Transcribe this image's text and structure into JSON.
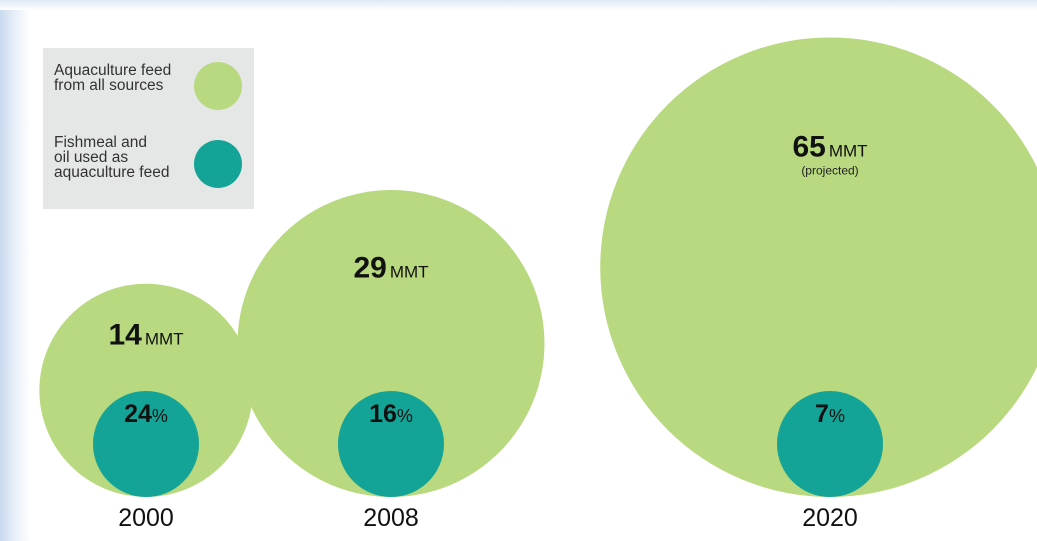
{
  "legend": {
    "items": [
      {
        "label": "Aquaculture feed\nfrom all sources",
        "color": "#b8d97f"
      },
      {
        "label": "Fishmeal and\noil used as\naquaculture feed",
        "color": "#14a497"
      }
    ]
  },
  "chart_data": {
    "type": "nested-bubble",
    "value_unit": "MMT",
    "share_unit": "%",
    "categories": [
      "2000",
      "2008",
      "2020"
    ],
    "series": [
      {
        "name": "Aquaculture feed from all sources",
        "values": [
          14,
          29,
          65
        ],
        "color": "#b8d97f"
      },
      {
        "name": "Fishmeal and oil used as aquaculture feed",
        "values": [
          24,
          16,
          7
        ],
        "color": "#14a497"
      }
    ],
    "annotations": [
      "",
      "",
      "(projected)"
    ]
  }
}
